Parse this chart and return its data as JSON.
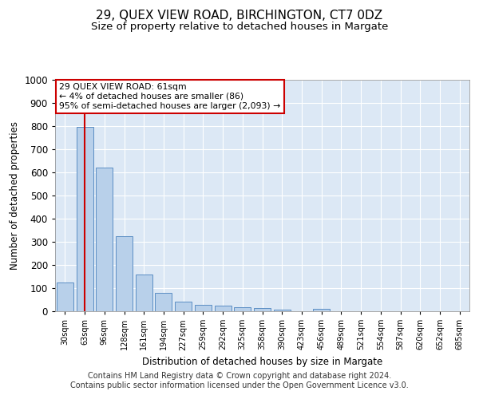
{
  "title": "29, QUEX VIEW ROAD, BIRCHINGTON, CT7 0DZ",
  "subtitle": "Size of property relative to detached houses in Margate",
  "xlabel": "Distribution of detached houses by size in Margate",
  "ylabel": "Number of detached properties",
  "bar_labels": [
    "30sqm",
    "63sqm",
    "96sqm",
    "128sqm",
    "161sqm",
    "194sqm",
    "227sqm",
    "259sqm",
    "292sqm",
    "325sqm",
    "358sqm",
    "390sqm",
    "423sqm",
    "456sqm",
    "489sqm",
    "521sqm",
    "554sqm",
    "587sqm",
    "620sqm",
    "652sqm",
    "685sqm"
  ],
  "bar_values": [
    125,
    795,
    620,
    325,
    160,
    78,
    40,
    28,
    23,
    18,
    15,
    8,
    0,
    10,
    0,
    0,
    0,
    0,
    0,
    0,
    0
  ],
  "bar_color": "#b8d0ea",
  "bar_edgecolor": "#5b8ec4",
  "vline_x": 1,
  "vline_color": "#cc0000",
  "annotation_text": "29 QUEX VIEW ROAD: 61sqm\n← 4% of detached houses are smaller (86)\n95% of semi-detached houses are larger (2,093) →",
  "annotation_box_color": "#cc0000",
  "annotation_text_color": "#000000",
  "ylim": [
    0,
    1000
  ],
  "yticks": [
    0,
    100,
    200,
    300,
    400,
    500,
    600,
    700,
    800,
    900,
    1000
  ],
  "background_color": "#dce8f5",
  "grid_color": "#ffffff",
  "fig_background": "#ffffff",
  "footer_line1": "Contains HM Land Registry data © Crown copyright and database right 2024.",
  "footer_line2": "Contains public sector information licensed under the Open Government Licence v3.0.",
  "title_fontsize": 11,
  "subtitle_fontsize": 9.5,
  "footer_fontsize": 7
}
